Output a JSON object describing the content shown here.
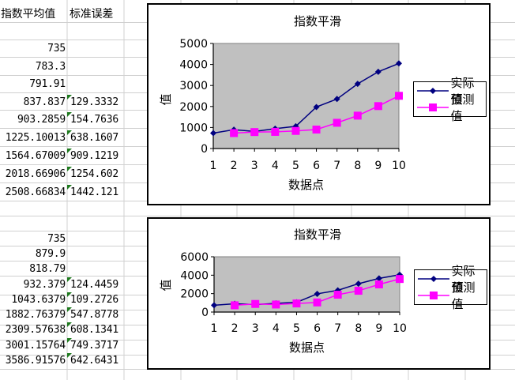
{
  "sheet": {
    "columns": {
      "A": {
        "header": "指数平均值"
      },
      "B": {
        "header": "标准误差"
      }
    },
    "block1": {
      "A": [
        "735",
        "783.3",
        "791.91",
        "837.837",
        "903.2859",
        "1225.10013",
        "1564.67009",
        "2018.66906",
        "2508.66834"
      ],
      "B": [
        "",
        "",
        "",
        "129.3332",
        "154.7636",
        "638.1607",
        "909.1219",
        "1254.602",
        "1442.121"
      ]
    },
    "block2": {
      "A": [
        "735",
        "879.9",
        "818.79",
        "932.379",
        "1043.6379",
        "1882.76379",
        "2309.57638",
        "3001.15764",
        "3586.91576"
      ],
      "B": [
        "",
        "",
        "",
        "124.4459",
        "109.2726",
        "547.8778",
        "608.1341",
        "749.3717",
        "642.6431"
      ]
    },
    "error_indicator_color": "#1e7a1e"
  },
  "chart_data": [
    {
      "type": "line",
      "title": "指数平滑",
      "xlabel": "数据点",
      "ylabel": "值",
      "categories": [
        "1",
        "2",
        "3",
        "4",
        "5",
        "6",
        "7",
        "8",
        "9",
        "10"
      ],
      "ylim": [
        0,
        5000
      ],
      "yticks": [
        "0",
        "1000",
        "2000",
        "3000",
        "4000",
        "5000"
      ],
      "grid": false,
      "plot_background": "#c0c0c0",
      "legend_position": "right",
      "series": [
        {
          "name": "实际值",
          "color": "#000080",
          "marker": "diamond",
          "values": [
            735,
            896,
            812,
            945,
            1056,
            1976,
            2357,
            3078,
            3652,
            4050
          ]
        },
        {
          "name": "预测值",
          "color": "#ff00ff",
          "marker": "square",
          "values": [
            null,
            735,
            783.3,
            791.91,
            837.837,
            903.2859,
            1225.10013,
            1564.67009,
            2018.66906,
            2508.66834
          ]
        }
      ]
    },
    {
      "type": "line",
      "title": "指数平滑",
      "xlabel": "数据点",
      "ylabel": "值",
      "categories": [
        "1",
        "2",
        "3",
        "4",
        "5",
        "6",
        "7",
        "8",
        "9",
        "10"
      ],
      "ylim": [
        0,
        6000
      ],
      "yticks": [
        "0",
        "2000",
        "4000",
        "6000"
      ],
      "grid": false,
      "plot_background": "#c0c0c0",
      "legend_position": "right",
      "series": [
        {
          "name": "实际值",
          "color": "#000080",
          "marker": "diamond",
          "values": [
            735,
            896,
            812,
            945,
            1056,
            1976,
            2357,
            3078,
            3652,
            4050
          ]
        },
        {
          "name": "预测值",
          "color": "#ff00ff",
          "marker": "square",
          "values": [
            null,
            735,
            879.9,
            818.79,
            932.379,
            1043.6379,
            1882.76379,
            2309.57638,
            3001.15764,
            3586.91576
          ]
        }
      ]
    }
  ]
}
